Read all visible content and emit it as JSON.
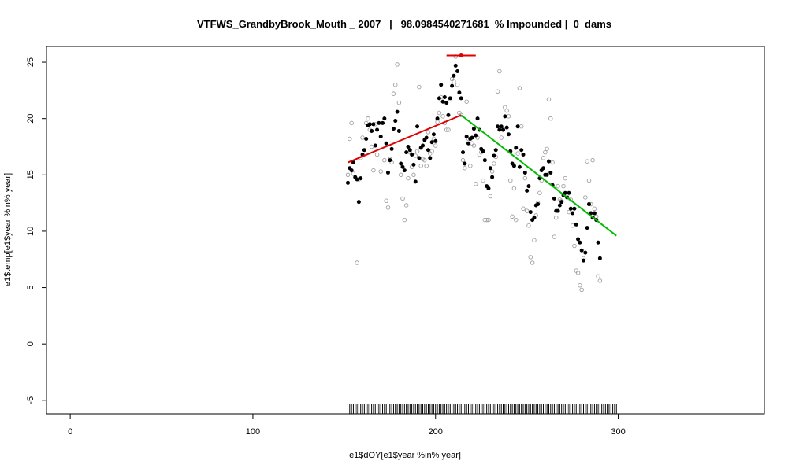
{
  "chart_data": {
    "type": "scatter",
    "title": "VTFWS_GrandbyBrook_Mouth _ 2007   |   98.0984540271681  % Impounded |  0  dams",
    "xlabel": "e1$dOY[e1$year %in% year]",
    "ylabel": "e1$temp[e1$year %in% year]",
    "xlim": [
      -13,
      380
    ],
    "ylim": [
      -6.2,
      26.4
    ],
    "x_ticks": [
      0,
      100,
      200,
      300
    ],
    "y_ticks": [
      -5,
      0,
      5,
      10,
      15,
      20,
      25
    ],
    "grid": false,
    "colors": {
      "current_points": "#000000",
      "other_points": "#a0a0a0",
      "rising_fit": "#e00000",
      "falling_fit": "#00bb00",
      "peak_marker": "#e00000"
    },
    "series": [
      {
        "values": [
          [
            152,
            14.3
          ],
          [
            153,
            15.6
          ],
          [
            154,
            15.4
          ],
          [
            155,
            16.1
          ],
          [
            156,
            14.8
          ],
          [
            157,
            14.6
          ],
          [
            158,
            12.6
          ],
          [
            159,
            14.7
          ],
          [
            160,
            16.8
          ],
          [
            161,
            17.2
          ],
          [
            162,
            18.2
          ],
          [
            163,
            19.4
          ],
          [
            164,
            19.5
          ],
          [
            165,
            18.9
          ],
          [
            166,
            19.5
          ],
          [
            167,
            17.6
          ],
          [
            168,
            19.0
          ],
          [
            169,
            19.6
          ],
          [
            170,
            18.4
          ],
          [
            171,
            19.6
          ],
          [
            172,
            20.0
          ],
          [
            173,
            17.8
          ],
          [
            174,
            15.2
          ],
          [
            175,
            16.3
          ],
          [
            176,
            17.3
          ],
          [
            177,
            19.1
          ],
          [
            178,
            19.8
          ],
          [
            179,
            20.6
          ],
          [
            180,
            18.9
          ],
          [
            181,
            16.0
          ],
          [
            182,
            15.7
          ],
          [
            183,
            15.4
          ],
          [
            184,
            17.0
          ],
          [
            185,
            17.5
          ],
          [
            186,
            17.2
          ],
          [
            187,
            16.8
          ],
          [
            188,
            15.9
          ],
          [
            189,
            14.4
          ],
          [
            190,
            19.3
          ],
          [
            191,
            16.5
          ],
          [
            192,
            17.4
          ],
          [
            193,
            17.6
          ],
          [
            194,
            18.1
          ],
          [
            195,
            18.3
          ],
          [
            196,
            17.2
          ],
          [
            197,
            16.5
          ],
          [
            198,
            17.9
          ],
          [
            199,
            18.6
          ],
          [
            200,
            18.0
          ],
          [
            201,
            20.0
          ],
          [
            202,
            21.8
          ],
          [
            203,
            23.0
          ],
          [
            204,
            21.5
          ],
          [
            205,
            21.9
          ],
          [
            206,
            21.4
          ],
          [
            207,
            20.3
          ],
          [
            208,
            21.8
          ],
          [
            209,
            22.9
          ],
          [
            210,
            23.8
          ],
          [
            211,
            24.7
          ],
          [
            212,
            24.2
          ],
          [
            213,
            22.3
          ],
          [
            214,
            21.8
          ],
          [
            215,
            17.0
          ],
          [
            216,
            16.0
          ],
          [
            217,
            18.4
          ],
          [
            218,
            17.8
          ],
          [
            219,
            18.2
          ],
          [
            220,
            18.3
          ],
          [
            221,
            19.1
          ],
          [
            222,
            18.5
          ],
          [
            223,
            20.0
          ],
          [
            224,
            19.0
          ],
          [
            225,
            17.3
          ],
          [
            226,
            17.1
          ],
          [
            227,
            16.3
          ],
          [
            228,
            14.0
          ],
          [
            229,
            13.8
          ],
          [
            230,
            15.6
          ],
          [
            231,
            14.8
          ],
          [
            232,
            16.7
          ],
          [
            233,
            17.2
          ],
          [
            234,
            19.3
          ],
          [
            235,
            19.0
          ],
          [
            236,
            19.3
          ],
          [
            237,
            19.0
          ],
          [
            238,
            20.2
          ],
          [
            239,
            19.2
          ],
          [
            240,
            18.6
          ],
          [
            241,
            17.1
          ],
          [
            242,
            16.0
          ],
          [
            243,
            15.8
          ],
          [
            244,
            17.4
          ],
          [
            245,
            19.3
          ],
          [
            246,
            15.7
          ],
          [
            247,
            17.2
          ],
          [
            248,
            16.8
          ],
          [
            249,
            15.2
          ],
          [
            250,
            13.6
          ],
          [
            251,
            14.0
          ],
          [
            252,
            11.7
          ],
          [
            253,
            11.0
          ],
          [
            254,
            11.2
          ],
          [
            255,
            12.3
          ],
          [
            256,
            12.4
          ],
          [
            257,
            14.7
          ],
          [
            258,
            15.4
          ],
          [
            259,
            15.6
          ],
          [
            260,
            15.0
          ],
          [
            261,
            15.0
          ],
          [
            262,
            16.2
          ],
          [
            263,
            15.2
          ],
          [
            264,
            14.1
          ],
          [
            265,
            12.9
          ],
          [
            266,
            11.8
          ],
          [
            267,
            11.8
          ],
          [
            268,
            12.3
          ],
          [
            269,
            12.6
          ],
          [
            270,
            13.2
          ],
          [
            271,
            13.4
          ],
          [
            272,
            13.0
          ],
          [
            273,
            13.4
          ],
          [
            274,
            12.0
          ],
          [
            275,
            11.6
          ],
          [
            276,
            12.0
          ],
          [
            277,
            10.6
          ],
          [
            278,
            9.3
          ],
          [
            279,
            9.0
          ],
          [
            280,
            8.3
          ],
          [
            281,
            7.4
          ],
          [
            282,
            8.1
          ],
          [
            283,
            10.3
          ],
          [
            284,
            12.4
          ],
          [
            285,
            11.6
          ],
          [
            286,
            11.2
          ],
          [
            287,
            11.6
          ],
          [
            288,
            11.0
          ],
          [
            289,
            9.0
          ],
          [
            290,
            7.6
          ]
        ]
      },
      {
        "values": [
          [
            152,
            15.0
          ],
          [
            153,
            18.2
          ],
          [
            154,
            19.6
          ],
          [
            155,
            15.1
          ],
          [
            157,
            7.2
          ],
          [
            158,
            14.6
          ],
          [
            159,
            16.5
          ],
          [
            160,
            18.3
          ],
          [
            162,
            19.6
          ],
          [
            163,
            20.0
          ],
          [
            164,
            19.0
          ],
          [
            165,
            17.5
          ],
          [
            166,
            15.4
          ],
          [
            167,
            19.5
          ],
          [
            168,
            16.8
          ],
          [
            170,
            15.3
          ],
          [
            172,
            16.3
          ],
          [
            173,
            12.7
          ],
          [
            174,
            12.1
          ],
          [
            175,
            16.4
          ],
          [
            176,
            16.1
          ],
          [
            177,
            22.2
          ],
          [
            178,
            23.0
          ],
          [
            179,
            24.8
          ],
          [
            180,
            21.4
          ],
          [
            181,
            15.0
          ],
          [
            182,
            12.9
          ],
          [
            183,
            11.0
          ],
          [
            184,
            12.3
          ],
          [
            185,
            14.7
          ],
          [
            186,
            17.0
          ],
          [
            187,
            15.7
          ],
          [
            188,
            15.0
          ],
          [
            189,
            16.7
          ],
          [
            190,
            17.1
          ],
          [
            191,
            22.8
          ],
          [
            192,
            15.8
          ],
          [
            193,
            16.4
          ],
          [
            194,
            16.3
          ],
          [
            195,
            15.8
          ],
          [
            196,
            18.8
          ],
          [
            197,
            16.9
          ],
          [
            198,
            17.1
          ],
          [
            199,
            18.2
          ],
          [
            200,
            17.6
          ],
          [
            201,
            19.7
          ],
          [
            202,
            20.5
          ],
          [
            203,
            21.9
          ],
          [
            204,
            20.2
          ],
          [
            205,
            19.6
          ],
          [
            206,
            19.0
          ],
          [
            207,
            19.0
          ],
          [
            208,
            21.7
          ],
          [
            209,
            23.5
          ],
          [
            210,
            23.3
          ],
          [
            211,
            25.5
          ],
          [
            212,
            23.0
          ],
          [
            213,
            20.5
          ],
          [
            214,
            20.3
          ],
          [
            215,
            16.3
          ],
          [
            216,
            15.6
          ],
          [
            217,
            21.5
          ],
          [
            218,
            18.2
          ],
          [
            219,
            15.8
          ],
          [
            220,
            17.8
          ],
          [
            221,
            17.6
          ],
          [
            222,
            14.2
          ],
          [
            223,
            18.3
          ],
          [
            224,
            16.8
          ],
          [
            225,
            17.0
          ],
          [
            226,
            14.5
          ],
          [
            227,
            11.0
          ],
          [
            228,
            11.0
          ],
          [
            229,
            11.0
          ],
          [
            230,
            13.1
          ],
          [
            231,
            15.3
          ],
          [
            232,
            16.0
          ],
          [
            233,
            16.6
          ],
          [
            234,
            22.4
          ],
          [
            235,
            24.2
          ],
          [
            236,
            18.3
          ],
          [
            237,
            19.0
          ],
          [
            238,
            21.0
          ],
          [
            239,
            20.7
          ],
          [
            240,
            20.2
          ],
          [
            241,
            14.5
          ],
          [
            242,
            11.3
          ],
          [
            243,
            13.8
          ],
          [
            244,
            11.0
          ],
          [
            245,
            16.9
          ],
          [
            246,
            22.7
          ],
          [
            247,
            19.3
          ],
          [
            248,
            12.0
          ],
          [
            249,
            14.7
          ],
          [
            250,
            11.8
          ],
          [
            251,
            10.5
          ],
          [
            252,
            7.7
          ],
          [
            253,
            7.2
          ],
          [
            254,
            9.2
          ],
          [
            255,
            11.4
          ],
          [
            256,
            12.5
          ],
          [
            257,
            13.4
          ],
          [
            258,
            14.5
          ],
          [
            259,
            16.5
          ],
          [
            260,
            17.0
          ],
          [
            261,
            17.3
          ],
          [
            262,
            21.7
          ],
          [
            263,
            20.0
          ],
          [
            264,
            16.1
          ],
          [
            265,
            9.5
          ],
          [
            266,
            11.2
          ],
          [
            267,
            14.0
          ],
          [
            268,
            12.8
          ],
          [
            269,
            12.7
          ],
          [
            270,
            14.0
          ],
          [
            271,
            14.7
          ],
          [
            272,
            13.2
          ],
          [
            273,
            11.7
          ],
          [
            274,
            12.8
          ],
          [
            275,
            10.5
          ],
          [
            276,
            8.7
          ],
          [
            277,
            6.5
          ],
          [
            278,
            6.3
          ],
          [
            279,
            5.2
          ],
          [
            280,
            4.8
          ],
          [
            281,
            7.6
          ],
          [
            282,
            13.0
          ],
          [
            283,
            16.2
          ],
          [
            284,
            14.5
          ],
          [
            285,
            12.4
          ],
          [
            286,
            16.3
          ],
          [
            287,
            12.0
          ],
          [
            288,
            11.3
          ],
          [
            289,
            6.0
          ],
          [
            290,
            5.6
          ]
        ]
      }
    ],
    "fit_lines": [
      {
        "x": [
          152,
          214
        ],
        "y": [
          16.1,
          20.3
        ]
      },
      {
        "x": [
          214,
          299
        ],
        "y": [
          20.3,
          9.6
        ]
      }
    ],
    "peak_marker": {
      "x": 214,
      "y": 25.6,
      "x_range": [
        206,
        222
      ]
    },
    "rug_x_range": [
      152,
      299
    ]
  }
}
